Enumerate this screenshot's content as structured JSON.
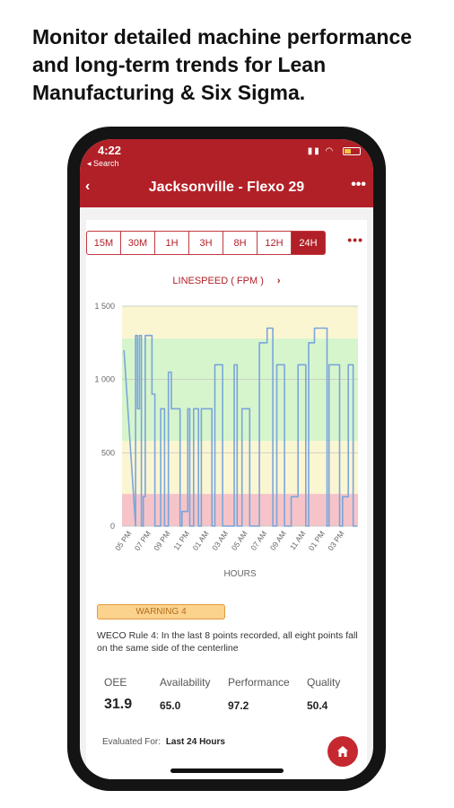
{
  "headline": "Monitor detailed machine performance and long-term trends for Lean Manufacturing & Six Sigma.",
  "status_bar": {
    "time": "4:22",
    "back_app": "◂ Search"
  },
  "nav": {
    "back": "‹",
    "title": "Jacksonville - Flexo 29",
    "more": "•••"
  },
  "ranges": [
    {
      "label": "15M",
      "active": false
    },
    {
      "label": "30M",
      "active": false
    },
    {
      "label": "1H",
      "active": false
    },
    {
      "label": "3H",
      "active": false
    },
    {
      "label": "8H",
      "active": false
    },
    {
      "label": "12H",
      "active": false
    },
    {
      "label": "24H",
      "active": true
    }
  ],
  "ranges_more": "•••",
  "chart_title": "LINESPEED ( FPM )",
  "chart_chevron": "›",
  "chart_data": {
    "type": "line",
    "title": "LINESPEED ( FPM )",
    "xlabel": "HOURS",
    "ylabel": "",
    "ylim": [
      0,
      1500
    ],
    "y_ticks": [
      "0",
      "500",
      "1 000",
      "1 500"
    ],
    "y_tick_values": [
      0,
      500,
      1000,
      1500
    ],
    "x_ticks": [
      "05 PM",
      "07 PM",
      "09 PM",
      "11 PM",
      "01 AM",
      "03 AM",
      "05 AM",
      "07 AM",
      "09 AM",
      "11 AM",
      "01 PM",
      "03 PM"
    ],
    "x_tick_positions": [
      1,
      3,
      5,
      7,
      9,
      11,
      13,
      15,
      17,
      19,
      21,
      23
    ],
    "xlim": [
      0,
      24.4
    ],
    "bands": [
      {
        "from": 0,
        "to": 220,
        "color": "#f6c4c8"
      },
      {
        "from": 220,
        "to": 580,
        "color": "#fbf6d2"
      },
      {
        "from": 580,
        "to": 1280,
        "color": "#d7f5cc"
      },
      {
        "from": 1280,
        "to": 1500,
        "color": "#fbf6d2"
      }
    ],
    "series": [
      {
        "color": "#7aa5dc",
        "x": [
          0.2,
          0.2,
          1.4,
          1.4,
          1.6,
          1.6,
          1.8,
          1.8,
          2.0,
          2.0,
          2.2,
          2.2,
          2.4,
          2.4,
          3.1,
          3.1,
          3.4,
          3.4,
          4.0,
          4.0,
          4.4,
          4.4,
          4.8,
          4.8,
          5.1,
          5.1,
          6.0,
          6.0,
          6.2,
          6.2,
          6.8,
          6.8,
          7.0,
          7.0,
          7.4,
          7.4,
          7.9,
          7.9,
          8.2,
          8.2,
          9.3,
          9.3,
          9.6,
          9.6,
          10.4,
          10.4,
          11.6,
          11.6,
          11.9,
          11.9,
          12.4,
          12.4,
          13.2,
          13.2,
          14.2,
          14.2,
          15.0,
          15.0,
          15.6,
          15.6,
          16.0,
          16.0,
          16.8,
          16.8,
          17.5,
          17.5,
          18.2,
          18.2,
          19.0,
          19.0,
          19.3,
          19.3,
          19.9,
          19.9,
          21.2,
          21.2,
          21.4,
          21.4,
          22.5,
          22.5,
          22.8,
          22.8,
          23.4,
          23.4,
          23.9,
          23.9,
          24.3
        ],
        "y": [
          1200,
          1200,
          0,
          1300,
          1300,
          800,
          800,
          1300,
          1300,
          0,
          0,
          200,
          200,
          1300,
          1300,
          900,
          900,
          0,
          0,
          800,
          800,
          0,
          0,
          1050,
          1050,
          800,
          800,
          0,
          0,
          100,
          100,
          800,
          800,
          0,
          0,
          800,
          800,
          0,
          0,
          800,
          800,
          0,
          0,
          1100,
          1100,
          0,
          0,
          1100,
          1100,
          0,
          0,
          800,
          800,
          0,
          0,
          1250,
          1250,
          1350,
          1350,
          0,
          0,
          1100,
          1100,
          0,
          0,
          200,
          200,
          1100,
          1100,
          0,
          0,
          1250,
          1250,
          1350,
          1350,
          0,
          0,
          1100,
          1100,
          0,
          0,
          200,
          200,
          1100,
          1100,
          0,
          0
        ]
      }
    ]
  },
  "warning": "WARNING 4",
  "rule_text": "WECO Rule 4: In the last 8 points recorded, all eight points fall on the same side of the centerline",
  "metrics": [
    {
      "label": "OEE",
      "value": "31.9"
    },
    {
      "label": "Availability",
      "value": "65.0"
    },
    {
      "label": "Performance",
      "value": "97.2"
    },
    {
      "label": "Quality",
      "value": "50.4"
    }
  ],
  "evaluated_label": "Evaluated For:",
  "evaluated_value": "Last 24 Hours",
  "colors": {
    "brand": "#b22027",
    "line": "#7aa5dc"
  }
}
